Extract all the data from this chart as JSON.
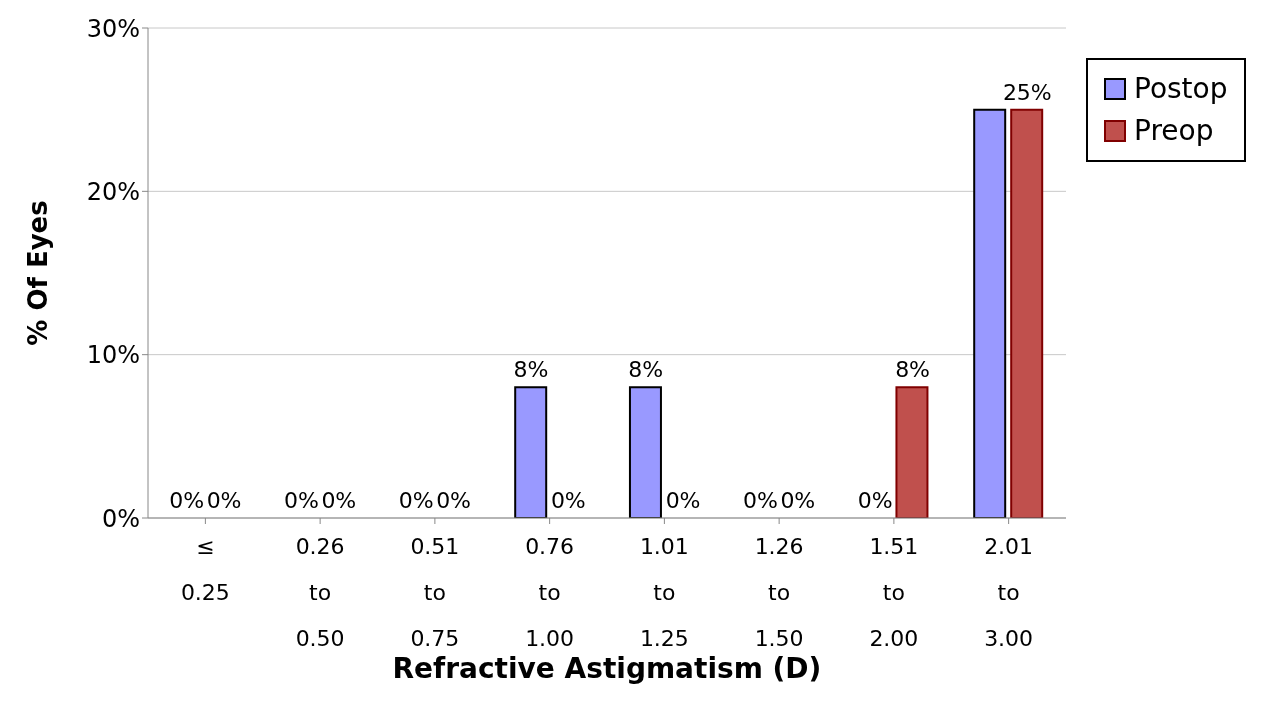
{
  "chart_data": {
    "type": "bar",
    "xlabel": "Refractive Astigmatism (D)",
    "ylabel": "% Of Eyes",
    "categories": [
      "≤ 0.25",
      "0.26 to 0.50",
      "0.51 to 0.75",
      "0.76 to 1.00",
      "1.01 to 1.25",
      "1.26 to 1.50",
      "1.51 to 2.00",
      "2.01 to 3.00"
    ],
    "series": [
      {
        "name": "Postop",
        "color": "#9999ff",
        "values": [
          0,
          0,
          0,
          8,
          8,
          0,
          0,
          25
        ],
        "value_labels": [
          "0%",
          "0%",
          "0%",
          "8%",
          "8%",
          "0%",
          "0%",
          null
        ]
      },
      {
        "name": "Preop",
        "color": "#c0504d",
        "values": [
          0,
          0,
          0,
          0,
          0,
          0,
          8,
          25
        ],
        "value_labels": [
          "0%",
          "0%",
          "0%",
          "0%",
          "0%",
          "0%",
          "8%",
          "25%"
        ]
      }
    ],
    "ylim": [
      0,
      30
    ],
    "yticks": [
      {
        "value": 0,
        "label": "0%"
      },
      {
        "value": 10,
        "label": "10%"
      },
      {
        "value": 20,
        "label": "20%"
      },
      {
        "value": 30,
        "label": "30%"
      }
    ],
    "grid": "y",
    "legend": "right"
  }
}
